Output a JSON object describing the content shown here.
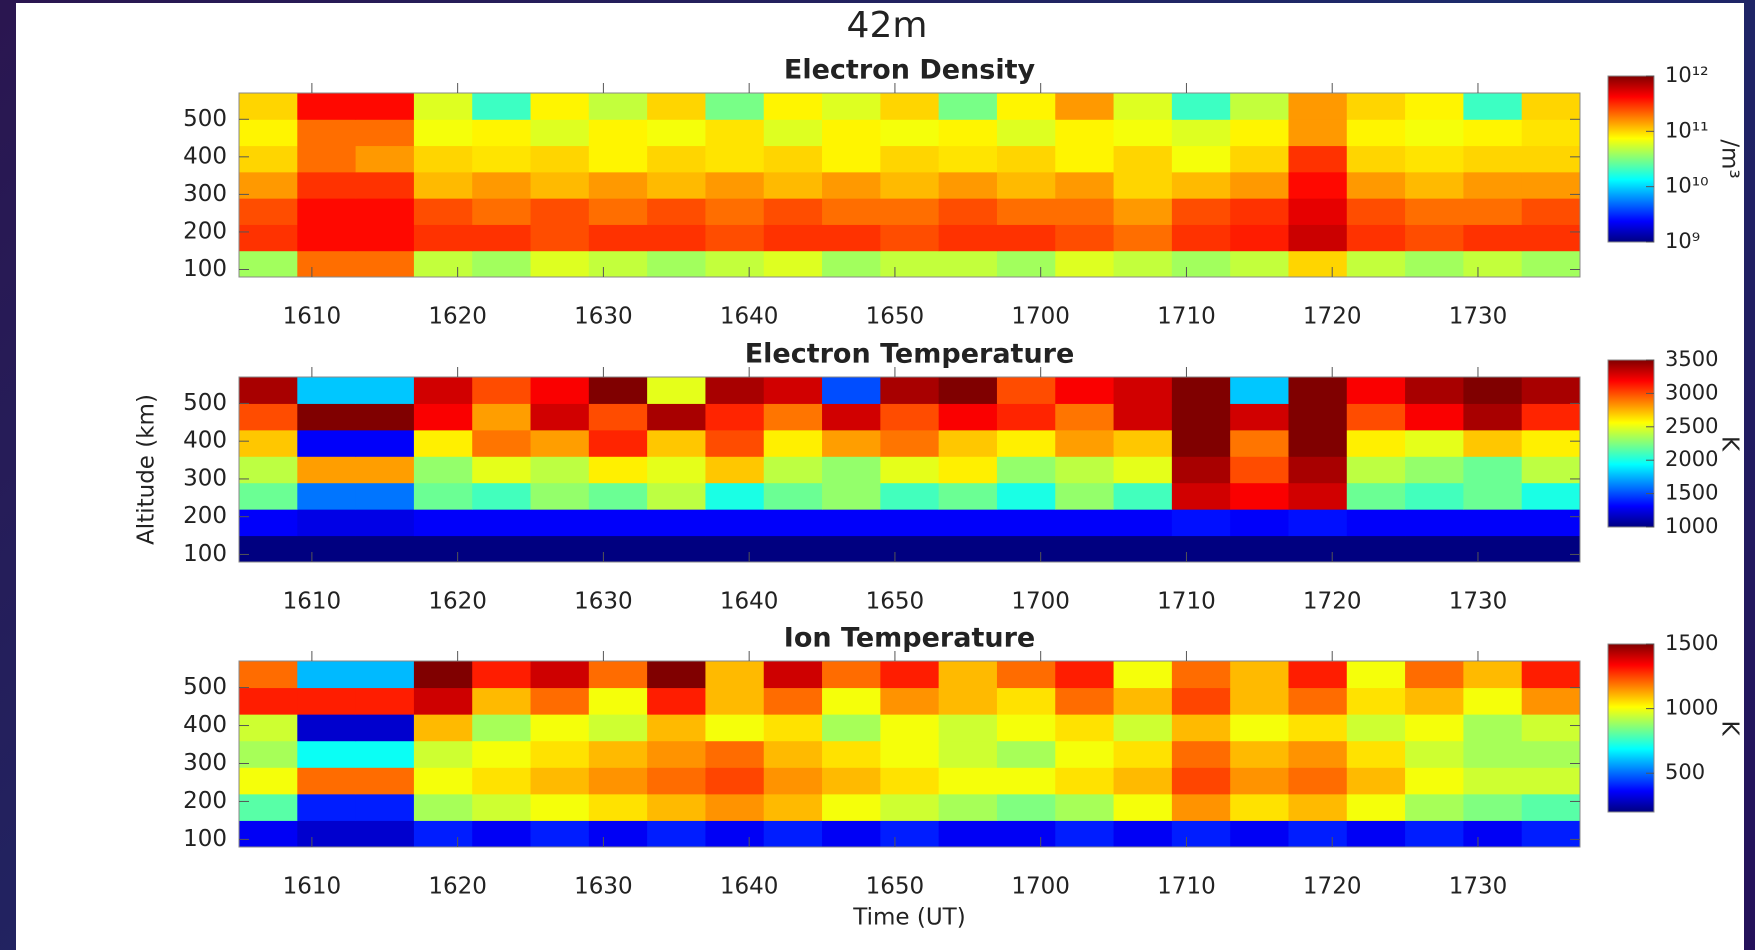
{
  "suptitle": "42m",
  "chart_data": [
    {
      "type": "heatmap",
      "title": "Electron Density",
      "colormap": "jet",
      "color_log": true,
      "colorbar_label": "/m³",
      "x": [
        965,
        969,
        973,
        977,
        981,
        985,
        989,
        993,
        997,
        1001,
        1005,
        1009,
        1013,
        1017,
        1021,
        1025,
        1029,
        1033,
        1037,
        1041,
        1045,
        1049,
        1053,
        1057
      ],
      "y": [
        80,
        150,
        220,
        290,
        360,
        430,
        500,
        570
      ],
      "z": [
        [
          40000000000.0,
          200000000000.0,
          200000000000.0,
          50000000000.0,
          40000000000.0,
          60000000000.0,
          50000000000.0,
          40000000000.0,
          50000000000.0,
          60000000000.0,
          40000000000.0,
          50000000000.0,
          50000000000.0,
          40000000000.0,
          60000000000.0,
          50000000000.0,
          40000000000.0,
          50000000000.0,
          100000000000.0,
          50000000000.0,
          40000000000.0,
          50000000000.0,
          40000000000.0
        ],
        [
          300000000000.0,
          400000000000.0,
          400000000000.0,
          300000000000.0,
          300000000000.0,
          250000000000.0,
          300000000000.0,
          300000000000.0,
          250000000000.0,
          300000000000.0,
          300000000000.0,
          250000000000.0,
          300000000000.0,
          300000000000.0,
          250000000000.0,
          200000000000.0,
          300000000000.0,
          350000000000.0,
          600000000000.0,
          300000000000.0,
          250000000000.0,
          300000000000.0,
          300000000000.0
        ],
        [
          250000000000.0,
          400000000000.0,
          400000000000.0,
          250000000000.0,
          200000000000.0,
          250000000000.0,
          200000000000.0,
          250000000000.0,
          200000000000.0,
          250000000000.0,
          200000000000.0,
          200000000000.0,
          250000000000.0,
          200000000000.0,
          200000000000.0,
          150000000000.0,
          250000000000.0,
          300000000000.0,
          500000000000.0,
          250000000000.0,
          200000000000.0,
          200000000000.0,
          250000000000.0
        ],
        [
          150000000000.0,
          300000000000.0,
          300000000000.0,
          120000000000.0,
          150000000000.0,
          120000000000.0,
          150000000000.0,
          120000000000.0,
          150000000000.0,
          120000000000.0,
          150000000000.0,
          120000000000.0,
          150000000000.0,
          120000000000.0,
          150000000000.0,
          100000000000.0,
          120000000000.0,
          150000000000.0,
          400000000000.0,
          150000000000.0,
          120000000000.0,
          150000000000.0,
          150000000000.0
        ],
        [
          100000000000.0,
          200000000000.0,
          150000000000.0,
          100000000000.0,
          90000000000.0,
          100000000000.0,
          80000000000.0,
          100000000000.0,
          90000000000.0,
          100000000000.0,
          80000000000.0,
          100000000000.0,
          90000000000.0,
          100000000000.0,
          80000000000.0,
          100000000000.0,
          70000000000.0,
          100000000000.0,
          300000000000.0,
          100000000000.0,
          90000000000.0,
          100000000000.0,
          100000000000.0
        ],
        [
          80000000000.0,
          200000000000.0,
          200000000000.0,
          70000000000.0,
          80000000000.0,
          60000000000.0,
          80000000000.0,
          70000000000.0,
          90000000000.0,
          60000000000.0,
          80000000000.0,
          70000000000.0,
          80000000000.0,
          60000000000.0,
          80000000000.0,
          70000000000.0,
          60000000000.0,
          80000000000.0,
          150000000000.0,
          80000000000.0,
          70000000000.0,
          80000000000.0,
          90000000000.0
        ],
        [
          100000000000.0,
          400000000000.0,
          400000000000.0,
          60000000000.0,
          20000000000.0,
          80000000000.0,
          50000000000.0,
          100000000000.0,
          30000000000.0,
          80000000000.0,
          60000000000.0,
          100000000000.0,
          30000000000.0,
          80000000000.0,
          150000000000.0,
          60000000000.0,
          20000000000.0,
          50000000000.0,
          150000000000.0,
          100000000000.0,
          80000000000.0,
          20000000000.0,
          100000000000.0
        ]
      ],
      "xlim": [
        965,
        1057
      ],
      "xticks": [
        {
          "value": 970,
          "label": "1610"
        },
        {
          "value": 980,
          "label": "1620"
        },
        {
          "value": 990,
          "label": "1630"
        },
        {
          "value": 1000,
          "label": "1640"
        },
        {
          "value": 1010,
          "label": "1650"
        },
        {
          "value": 1020,
          "label": "1700"
        },
        {
          "value": 1030,
          "label": "1710"
        },
        {
          "value": 1040,
          "label": "1720"
        },
        {
          "value": 1050,
          "label": "1730"
        }
      ],
      "ylim": [
        80,
        570
      ],
      "yticks": [
        100,
        200,
        300,
        400,
        500
      ],
      "zlim": [
        1000000000.0,
        1000000000000.0
      ],
      "zticks": [
        {
          "value": 1000000000.0,
          "label": "10⁹"
        },
        {
          "value": 10000000000.0,
          "label": "10¹⁰"
        },
        {
          "value": 100000000000.0,
          "label": "10¹¹"
        },
        {
          "value": 1000000000000.0,
          "label": "10¹²"
        }
      ]
    },
    {
      "type": "heatmap",
      "title": "Electron Temperature",
      "colormap": "jet",
      "color_log": false,
      "colorbar_label": "K",
      "ylabel": "Altitude (km)",
      "x": [
        965,
        969,
        973,
        977,
        981,
        985,
        989,
        993,
        997,
        1001,
        1005,
        1009,
        1013,
        1017,
        1021,
        1025,
        1029,
        1033,
        1037,
        1041,
        1045,
        1049,
        1053,
        1057
      ],
      "y": [
        80,
        150,
        220,
        290,
        360,
        430,
        500,
        570
      ],
      "z": [
        [
          1000,
          1000,
          1000,
          1000,
          1000,
          1000,
          1000,
          1000,
          1000,
          1000,
          1000,
          1000,
          1000,
          1000,
          1000,
          1000,
          1000,
          1000,
          1000,
          1000,
          1000,
          1000,
          1000
        ],
        [
          1300,
          1250,
          1250,
          1300,
          1300,
          1300,
          1300,
          1300,
          1300,
          1300,
          1300,
          1300,
          1300,
          1300,
          1300,
          1300,
          1350,
          1300,
          1350,
          1300,
          1300,
          1300,
          1300
        ],
        [
          2200,
          1600,
          1600,
          2200,
          2100,
          2300,
          2200,
          2400,
          2000,
          2200,
          2300,
          2100,
          2200,
          2000,
          2300,
          2100,
          3300,
          3200,
          3300,
          2200,
          2100,
          2200,
          2000
        ],
        [
          2400,
          2800,
          2800,
          2300,
          2500,
          2400,
          2600,
          2500,
          2700,
          2400,
          2300,
          2500,
          2600,
          2300,
          2400,
          2500,
          3400,
          3000,
          3400,
          2400,
          2300,
          2200,
          2400
        ],
        [
          2700,
          1300,
          1300,
          2600,
          2900,
          2800,
          3100,
          2700,
          3000,
          2600,
          2800,
          2900,
          2700,
          2600,
          2800,
          2700,
          3500,
          2900,
          3500,
          2600,
          2500,
          2700,
          2600
        ],
        [
          3000,
          3500,
          3500,
          3200,
          2800,
          3300,
          3000,
          3400,
          3100,
          2900,
          3300,
          3000,
          3200,
          3100,
          2900,
          3300,
          3500,
          3300,
          3500,
          3000,
          3200,
          3400,
          3100
        ],
        [
          3400,
          1800,
          1800,
          3300,
          3000,
          3200,
          3500,
          2500,
          3400,
          3300,
          1500,
          3400,
          3500,
          3000,
          3200,
          3300,
          3500,
          1800,
          3500,
          3200,
          3400,
          3500,
          3400
        ]
      ],
      "xlim": [
        965,
        1057
      ],
      "xticks": [
        {
          "value": 970,
          "label": "1610"
        },
        {
          "value": 980,
          "label": "1620"
        },
        {
          "value": 990,
          "label": "1630"
        },
        {
          "value": 1000,
          "label": "1640"
        },
        {
          "value": 1010,
          "label": "1650"
        },
        {
          "value": 1020,
          "label": "1700"
        },
        {
          "value": 1030,
          "label": "1710"
        },
        {
          "value": 1040,
          "label": "1720"
        },
        {
          "value": 1050,
          "label": "1730"
        }
      ],
      "ylim": [
        80,
        570
      ],
      "yticks": [
        100,
        200,
        300,
        400,
        500
      ],
      "zlim": [
        1000,
        3500
      ],
      "zticks": [
        1000,
        1500,
        2000,
        2500,
        3000,
        3500
      ]
    },
    {
      "type": "heatmap",
      "title": "Ion Temperature",
      "colormap": "jet",
      "color_log": false,
      "colorbar_label": "K",
      "xlabel": "Time (UT)",
      "x": [
        965,
        969,
        973,
        977,
        981,
        985,
        989,
        993,
        997,
        1001,
        1005,
        1009,
        1013,
        1017,
        1021,
        1025,
        1029,
        1033,
        1037,
        1041,
        1045,
        1049,
        1053,
        1057
      ],
      "y": [
        80,
        150,
        220,
        290,
        360,
        430,
        500,
        570
      ],
      "z": [
        [
          350,
          300,
          300,
          400,
          350,
          400,
          350,
          400,
          350,
          400,
          350,
          400,
          350,
          350,
          400,
          350,
          400,
          350,
          400,
          350,
          400,
          350,
          400
        ],
        [
          800,
          400,
          400,
          900,
          950,
          1000,
          1050,
          1100,
          1150,
          1100,
          1000,
          950,
          900,
          850,
          900,
          1000,
          1150,
          1050,
          1100,
          1000,
          900,
          850,
          800
        ],
        [
          1000,
          1200,
          1200,
          1000,
          1050,
          1100,
          1150,
          1200,
          1250,
          1150,
          1100,
          1050,
          1000,
          1000,
          1050,
          1100,
          1250,
          1150,
          1200,
          1100,
          1000,
          950,
          950
        ],
        [
          900,
          700,
          700,
          950,
          1000,
          1050,
          1100,
          1150,
          1200,
          1100,
          1050,
          1000,
          950,
          900,
          1000,
          1050,
          1200,
          1100,
          1150,
          1050,
          950,
          900,
          900
        ],
        [
          950,
          300,
          300,
          1100,
          900,
          1000,
          950,
          1100,
          1000,
          1050,
          900,
          1000,
          950,
          1000,
          1050,
          950,
          1100,
          1000,
          1050,
          950,
          1000,
          900,
          950
        ],
        [
          1300,
          1300,
          1300,
          1400,
          1100,
          1200,
          1000,
          1300,
          1100,
          1200,
          1000,
          1150,
          1100,
          1050,
          1200,
          1100,
          1250,
          1100,
          1200,
          1050,
          1100,
          1000,
          1150
        ],
        [
          1200,
          600,
          600,
          1500,
          1300,
          1400,
          1200,
          1500,
          1100,
          1400,
          1200,
          1300,
          1100,
          1200,
          1300,
          1000,
          1200,
          1100,
          1300,
          1000,
          1200,
          1100,
          1300
        ]
      ],
      "xlim": [
        965,
        1057
      ],
      "xticks": [
        {
          "value": 970,
          "label": "1610"
        },
        {
          "value": 980,
          "label": "1620"
        },
        {
          "value": 990,
          "label": "1630"
        },
        {
          "value": 1000,
          "label": "1640"
        },
        {
          "value": 1010,
          "label": "1650"
        },
        {
          "value": 1020,
          "label": "1700"
        },
        {
          "value": 1030,
          "label": "1710"
        },
        {
          "value": 1040,
          "label": "1720"
        },
        {
          "value": 1050,
          "label": "1730"
        }
      ],
      "ylim": [
        80,
        570
      ],
      "yticks": [
        100,
        200,
        300,
        400,
        500
      ],
      "zlim": [
        200,
        1500
      ],
      "zticks": [
        500,
        1000,
        1500
      ]
    }
  ]
}
